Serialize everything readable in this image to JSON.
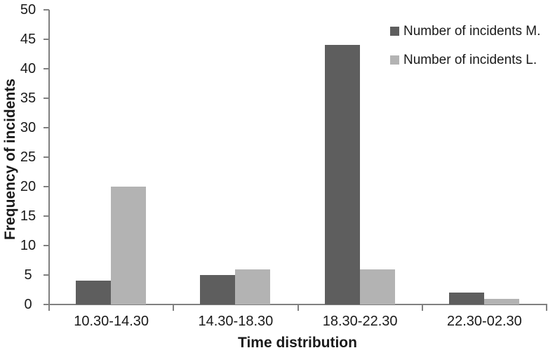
{
  "figure": {
    "background": "#ffffff"
  },
  "chart_data": {
    "type": "bar",
    "title": "",
    "xlabel": "Time distribution",
    "ylabel": "Frequency of incidents",
    "categories": [
      "10.30-14.30",
      "14.30-18.30",
      "18.30-22.30",
      "22.30-02.30"
    ],
    "series": [
      {
        "name": "Number of incidents M.",
        "color": "#5e5e5e",
        "values": [
          4,
          5,
          44,
          2
        ]
      },
      {
        "name": "Number of incidents L.",
        "color": "#b3b3b3",
        "values": [
          20,
          6,
          6,
          1
        ]
      }
    ],
    "ylim": [
      0,
      50
    ],
    "ytick_step": 5,
    "yticks": [
      0,
      5,
      10,
      15,
      20,
      25,
      30,
      35,
      40,
      45,
      50
    ],
    "grid": "off",
    "legend_position": "top-right",
    "axis_color": "#808080",
    "text_color": "#1a1a1a"
  }
}
